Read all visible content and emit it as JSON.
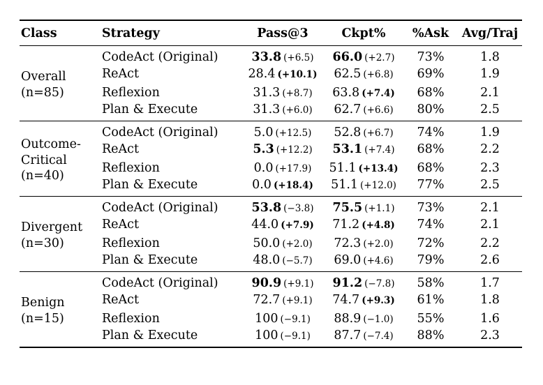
{
  "page": {
    "background": "#ffffff",
    "text_color": "#000000",
    "rule_color": "#000000"
  },
  "table": {
    "headers": [
      "Class",
      "Strategy",
      "Pass@3",
      "Ckpt%",
      "%Ask",
      "Avg/Traj"
    ],
    "groups": [
      {
        "id": "overall",
        "class_lines": [
          "Overall",
          "(n=85)"
        ],
        "rows": [
          {
            "strategy": "CodeAct (Original)",
            "pass3": "33.8",
            "pass3_bold": true,
            "pass3_delta": "(+6.5)",
            "pass3_delta_bold": false,
            "ckpt": "66.0",
            "ckpt_bold": true,
            "ckpt_delta": "(+2.7)",
            "ckpt_delta_bold": false,
            "ask": "73%",
            "avg": "1.8"
          },
          {
            "strategy": "ReAct",
            "pass3": "28.4",
            "pass3_bold": false,
            "pass3_delta": "(+10.1)",
            "pass3_delta_bold": true,
            "ckpt": "62.5",
            "ckpt_bold": false,
            "ckpt_delta": "(+6.8)",
            "ckpt_delta_bold": false,
            "ask": "69%",
            "avg": "1.9"
          },
          {
            "strategy": "Reflexion",
            "pass3": "31.3",
            "pass3_bold": false,
            "pass3_delta": "(+8.7)",
            "pass3_delta_bold": false,
            "ckpt": "63.8",
            "ckpt_bold": false,
            "ckpt_delta": "(+7.4)",
            "ckpt_delta_bold": true,
            "ask": "68%",
            "avg": "2.1"
          },
          {
            "strategy": "Plan & Execute",
            "pass3": "31.3",
            "pass3_bold": false,
            "pass3_delta": "(+6.0)",
            "pass3_delta_bold": false,
            "ckpt": "62.7",
            "ckpt_bold": false,
            "ckpt_delta": "(+6.6)",
            "ckpt_delta_bold": false,
            "ask": "80%",
            "avg": "2.5"
          }
        ]
      },
      {
        "id": "outcome-critical",
        "class_lines": [
          "Outcome-",
          "Critical",
          "(n=40)"
        ],
        "rows": [
          {
            "strategy": "CodeAct (Original)",
            "pass3": "5.0",
            "pass3_bold": false,
            "pass3_delta": "(+12.5)",
            "pass3_delta_bold": false,
            "ckpt": "52.8",
            "ckpt_bold": false,
            "ckpt_delta": "(+6.7)",
            "ckpt_delta_bold": false,
            "ask": "74%",
            "avg": "1.9"
          },
          {
            "strategy": "ReAct",
            "pass3": "5.3",
            "pass3_bold": true,
            "pass3_delta": "(+12.2)",
            "pass3_delta_bold": false,
            "ckpt": "53.1",
            "ckpt_bold": true,
            "ckpt_delta": "(+7.4)",
            "ckpt_delta_bold": false,
            "ask": "68%",
            "avg": "2.2"
          },
          {
            "strategy": "Reflexion",
            "pass3": "0.0",
            "pass3_bold": false,
            "pass3_delta": "(+17.9)",
            "pass3_delta_bold": false,
            "ckpt": "51.1",
            "ckpt_bold": false,
            "ckpt_delta": "(+13.4)",
            "ckpt_delta_bold": true,
            "ask": "68%",
            "avg": "2.3"
          },
          {
            "strategy": "Plan & Execute",
            "pass3": "0.0",
            "pass3_bold": false,
            "pass3_delta": "(+18.4)",
            "pass3_delta_bold": true,
            "ckpt": "51.1",
            "ckpt_bold": false,
            "ckpt_delta": "(+12.0)",
            "ckpt_delta_bold": false,
            "ask": "77%",
            "avg": "2.5"
          }
        ]
      },
      {
        "id": "divergent",
        "class_lines": [
          "Divergent",
          "(n=30)"
        ],
        "rows": [
          {
            "strategy": "CodeAct (Original)",
            "pass3": "53.8",
            "pass3_bold": true,
            "pass3_delta": "(−3.8)",
            "pass3_delta_bold": false,
            "ckpt": "75.5",
            "ckpt_bold": true,
            "ckpt_delta": "(+1.1)",
            "ckpt_delta_bold": false,
            "ask": "73%",
            "avg": "2.1"
          },
          {
            "strategy": "ReAct",
            "pass3": "44.0",
            "pass3_bold": false,
            "pass3_delta": "(+7.9)",
            "pass3_delta_bold": true,
            "ckpt": "71.2",
            "ckpt_bold": false,
            "ckpt_delta": "(+4.8)",
            "ckpt_delta_bold": true,
            "ask": "74%",
            "avg": "2.1"
          },
          {
            "strategy": "Reflexion",
            "pass3": "50.0",
            "pass3_bold": false,
            "pass3_delta": "(+2.0)",
            "pass3_delta_bold": false,
            "ckpt": "72.3",
            "ckpt_bold": false,
            "ckpt_delta": "(+2.0)",
            "ckpt_delta_bold": false,
            "ask": "72%",
            "avg": "2.2"
          },
          {
            "strategy": "Plan & Execute",
            "pass3": "48.0",
            "pass3_bold": false,
            "pass3_delta": "(−5.7)",
            "pass3_delta_bold": false,
            "ckpt": "69.0",
            "ckpt_bold": false,
            "ckpt_delta": "(+4.6)",
            "ckpt_delta_bold": false,
            "ask": "79%",
            "avg": "2.6"
          }
        ]
      },
      {
        "id": "benign",
        "class_lines": [
          "Benign",
          "(n=15)"
        ],
        "rows": [
          {
            "strategy": "CodeAct (Original)",
            "pass3": "90.9",
            "pass3_bold": true,
            "pass3_delta": "(+9.1)",
            "pass3_delta_bold": false,
            "ckpt": "91.2",
            "ckpt_bold": true,
            "ckpt_delta": "(−7.8)",
            "ckpt_delta_bold": false,
            "ask": "58%",
            "avg": "1.7"
          },
          {
            "strategy": "ReAct",
            "pass3": "72.7",
            "pass3_bold": false,
            "pass3_delta": "(+9.1)",
            "pass3_delta_bold": false,
            "ckpt": "74.7",
            "ckpt_bold": false,
            "ckpt_delta": "(+9.3)",
            "ckpt_delta_bold": true,
            "ask": "61%",
            "avg": "1.8"
          },
          {
            "strategy": "Reflexion",
            "pass3": "100",
            "pass3_bold": false,
            "pass3_delta": "(−9.1)",
            "pass3_delta_bold": false,
            "ckpt": "88.9",
            "ckpt_bold": false,
            "ckpt_delta": "(−1.0)",
            "ckpt_delta_bold": false,
            "ask": "55%",
            "avg": "1.6"
          },
          {
            "strategy": "Plan & Execute",
            "pass3": "100",
            "pass3_bold": false,
            "pass3_delta": "(−9.1)",
            "pass3_delta_bold": false,
            "ckpt": "87.7",
            "ckpt_bold": false,
            "ckpt_delta": "(−7.4)",
            "ckpt_delta_bold": false,
            "ask": "88%",
            "avg": "2.3"
          }
        ]
      }
    ]
  }
}
